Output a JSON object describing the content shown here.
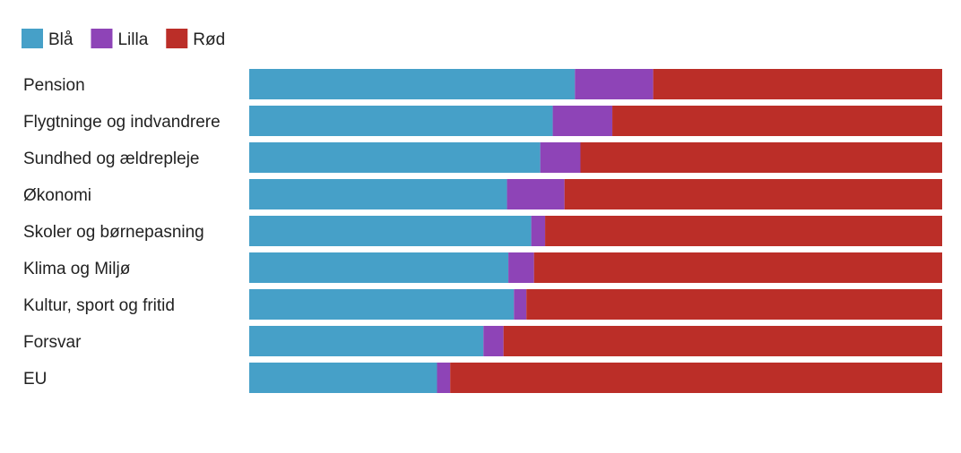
{
  "chart_data": {
    "type": "bar",
    "orientation": "horizontal",
    "stacked": true,
    "normalized": true,
    "title": "",
    "xlabel": "",
    "ylabel": "",
    "xlim": [
      0,
      100
    ],
    "grid": false,
    "legend_position": "top-left",
    "categories": [
      "Pension",
      "Flygtninge og indvandrere",
      "Sundhed og ældrepleje",
      "Økonomi",
      "Skoler og børnepasning",
      "Klima og Miljø",
      "Kultur, sport og fritid",
      "Forsvar",
      "EU"
    ],
    "series": [
      {
        "name": "Blå",
        "color": "#46a0c8",
        "values": [
          47,
          43.8,
          42,
          37.2,
          40.7,
          37.4,
          38.2,
          33.8,
          27.1
        ]
      },
      {
        "name": "Lilla",
        "color": "#8e44b7",
        "values": [
          11.3,
          8.6,
          5.8,
          8.3,
          2,
          3.7,
          1.8,
          2.9,
          1.9
        ]
      },
      {
        "name": "Rød",
        "color": "#bb2e28",
        "values": [
          41.7,
          47.6,
          52.2,
          54.5,
          57.3,
          58.9,
          60,
          63.3,
          71
        ]
      }
    ]
  }
}
